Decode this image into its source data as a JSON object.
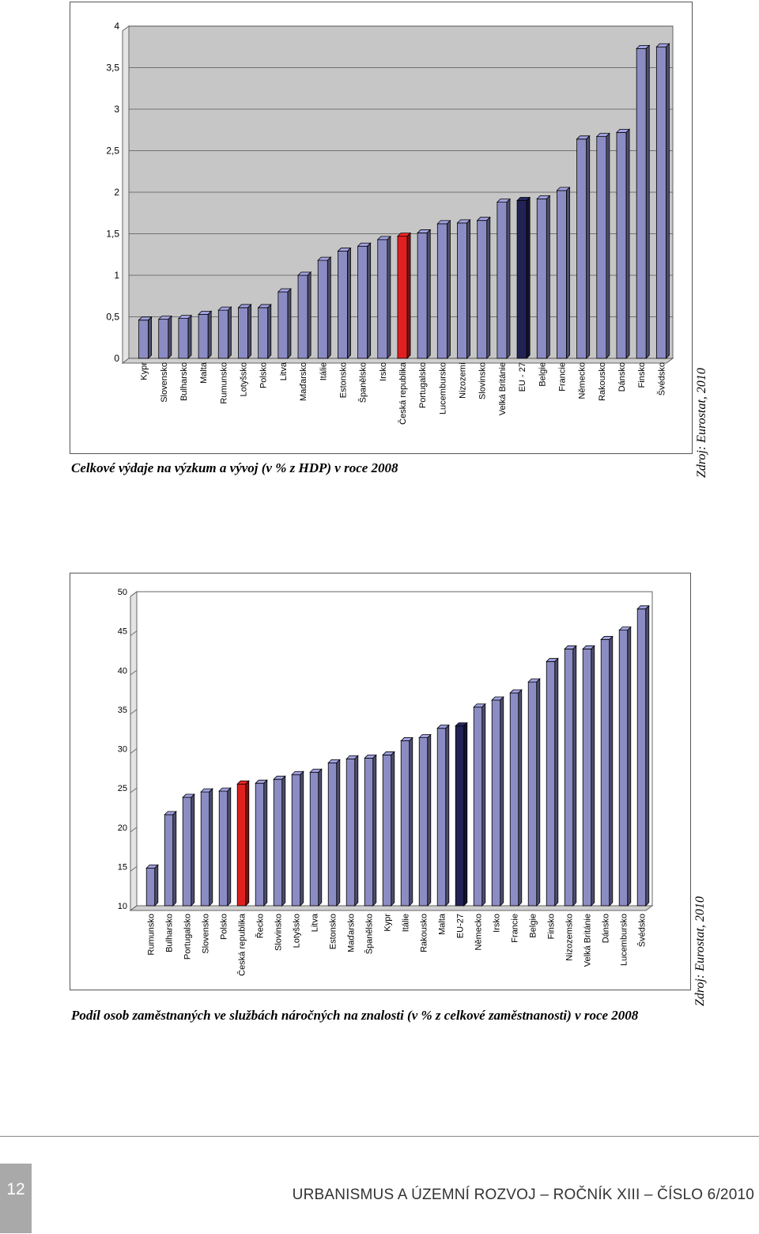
{
  "chart_data": [
    {
      "type": "bar",
      "title": "Celkové výdaje na výzkum a vývoj (v % z HDP) v roce 2008",
      "source": "Zdroj: Eurostat, 2010",
      "ylim": [
        0,
        4
      ],
      "yticks": [
        "0",
        "0,5",
        "1",
        "1,5",
        "2",
        "2,5",
        "3",
        "3,5",
        "4"
      ],
      "categories": [
        "Kypr",
        "Slovensko",
        "Bulharsko",
        "Malta",
        "Rumunsko",
        "Lotyšsko",
        "Polsko",
        "Litva",
        "Maďarsko",
        "Itálie",
        "Estonsko",
        "Španělsko",
        "Irsko",
        "Česká republika",
        "Portugalsko",
        "Lucembursko",
        "Nizozemí",
        "Slovinsko",
        "Velká Británie",
        "EU - 27",
        "Belgie",
        "Francie",
        "Německo",
        "Rakousko",
        "Dánsko",
        "Finsko",
        "Švédsko"
      ],
      "values": [
        0.46,
        0.47,
        0.48,
        0.53,
        0.58,
        0.61,
        0.61,
        0.8,
        1.0,
        1.18,
        1.29,
        1.35,
        1.43,
        1.47,
        1.51,
        1.62,
        1.63,
        1.66,
        1.88,
        1.9,
        1.92,
        2.02,
        2.64,
        2.67,
        2.72,
        3.73,
        3.75
      ],
      "grid": true,
      "colors": {
        "default": "#8c8cc4",
        "highlight": "#e02020",
        "eu": "#222255",
        "plot_bg": "#c6c6c6"
      },
      "highlight": "Česká republika",
      "eu": "EU - 27"
    },
    {
      "type": "bar",
      "title": "Podíl osob zaměstnaných ve službách náročných na znalosti (v % z celkové zaměstnanosti) v roce 2008",
      "source": "Zdroj: Eurostat, 2010",
      "ylim": [
        10,
        50
      ],
      "yticks": [
        "10",
        "15",
        "20",
        "25",
        "30",
        "35",
        "40",
        "45",
        "50"
      ],
      "categories": [
        "Rumunsko",
        "Bulharsko",
        "Portugalsko",
        "Slovensko",
        "Polsko",
        "Česká republika",
        "Řecko",
        "Slovinsko",
        "Lotyšsko",
        "Litva",
        "Estonsko",
        "Maďarsko",
        "Španělsko",
        "Kypr",
        "Itálie",
        "Rakousko",
        "Malta",
        "EU-27",
        "Německo",
        "Irsko",
        "Francie",
        "Belgie",
        "Finsko",
        "Nizozemsko",
        "Velká Británie",
        "Dánsko",
        "Lucembursko",
        "Švédsko"
      ],
      "values": [
        14.8,
        21.6,
        23.8,
        24.5,
        24.6,
        25.5,
        25.6,
        26.1,
        26.7,
        27.0,
        28.2,
        28.7,
        28.8,
        29.2,
        31.0,
        31.4,
        32.6,
        32.9,
        35.3,
        36.2,
        37.1,
        38.5,
        41.1,
        42.7,
        42.7,
        43.9,
        45.1,
        47.8
      ],
      "grid": false,
      "colors": {
        "default": "#8c8cc4",
        "highlight": "#e02020",
        "eu": "#222255",
        "plot_bg": "#ffffff"
      },
      "highlight": "Česká republika",
      "eu": "EU-27"
    }
  ],
  "captions": {
    "chart1": "Celkové výdaje na výzkum a vývoj (v % z HDP) v roce 2008",
    "chart2": "Podíl osob zaměstnaných ve službách náročných na znalosti (v % z celkové zaměstnanosti) v roce 2008",
    "source1": "Zdroj: Eurostat, 2010",
    "source2": "Zdroj: Eurostat, 2010"
  },
  "footer": {
    "page_number": "12",
    "journal": "URBANISMUS A ÚZEMNÍ ROZVOJ – ROČNÍK XIII – ČÍSLO 6/2010"
  }
}
